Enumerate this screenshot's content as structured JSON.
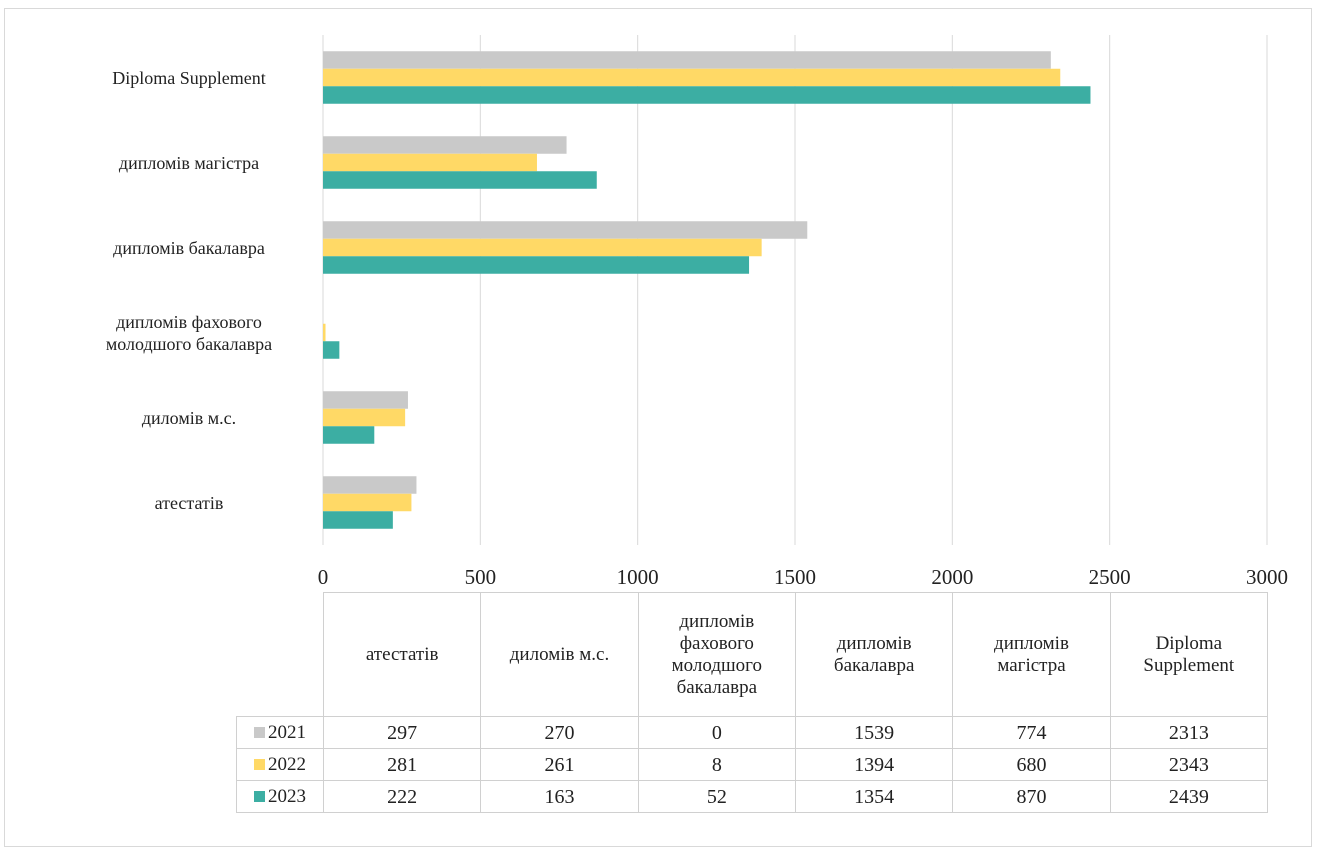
{
  "chart_data": {
    "type": "hbar",
    "categories": [
      "атестатів",
      "диломів м.с.",
      "дипломів фахового молодшого бакалавра",
      "дипломів бакалавра",
      "дипломів магістра",
      "Diploma Supplement"
    ],
    "series": [
      {
        "name": "2021",
        "color": "#c9c9c9",
        "values": [
          297,
          270,
          0,
          1539,
          774,
          2313
        ]
      },
      {
        "name": "2022",
        "color": "#ffd966",
        "values": [
          281,
          261,
          8,
          1394,
          680,
          2343
        ]
      },
      {
        "name": "2023",
        "color": "#3caea3",
        "values": [
          222,
          163,
          52,
          1354,
          870,
          2439
        ]
      }
    ],
    "xlim": [
      0,
      3000
    ],
    "xticks": [
      0,
      500,
      1000,
      1500,
      2000,
      2500,
      3000
    ],
    "grid": true,
    "data_table": true
  }
}
